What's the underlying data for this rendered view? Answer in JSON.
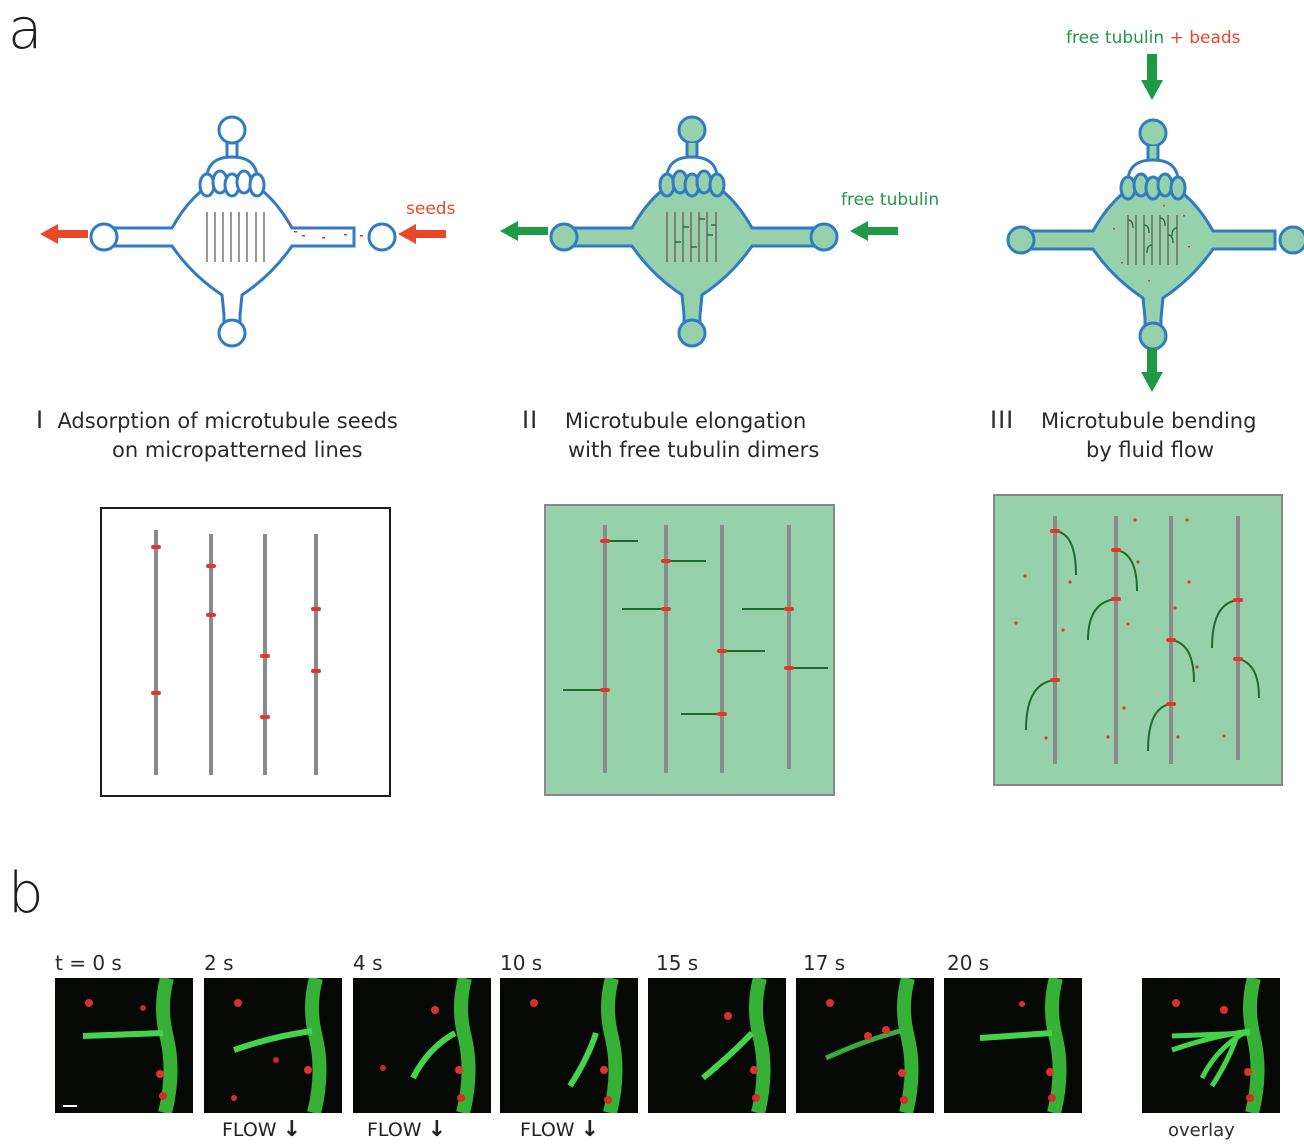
{
  "panel_a": {
    "letter": "a",
    "steps": [
      {
        "num": "I",
        "line1": "Adsorption of microtubule seeds",
        "line2": "on micropatterned lines"
      },
      {
        "num": "II",
        "line1": "Microtubule elongation",
        "line2": "with free tubulin dimers"
      },
      {
        "num": "III",
        "line1": "Microtubule bending",
        "line2": "by fluid flow"
      }
    ],
    "labels": {
      "seeds": "seeds",
      "free_tubulin": "free tubulin",
      "free_tubulin_beads_1": "free tubulin",
      "plus": "+",
      "beads": "beads"
    }
  },
  "panel_b": {
    "letter": "b",
    "times": [
      "t = 0 s",
      "2 s",
      "4 s",
      "10 s",
      "15 s",
      "17 s",
      "20 s"
    ],
    "flow_label": "FLOW",
    "overlay_label": "overlay"
  },
  "colors": {
    "chamber_outline": "#2f7bc4",
    "fluid_fill": "#96d1ac",
    "seed_red": "#e8352a",
    "arrow_red": "#e8482b",
    "arrow_green": "#1e9a45",
    "line_gray": "#8a8a8a",
    "microtubule_green": "#1f6b2e"
  }
}
